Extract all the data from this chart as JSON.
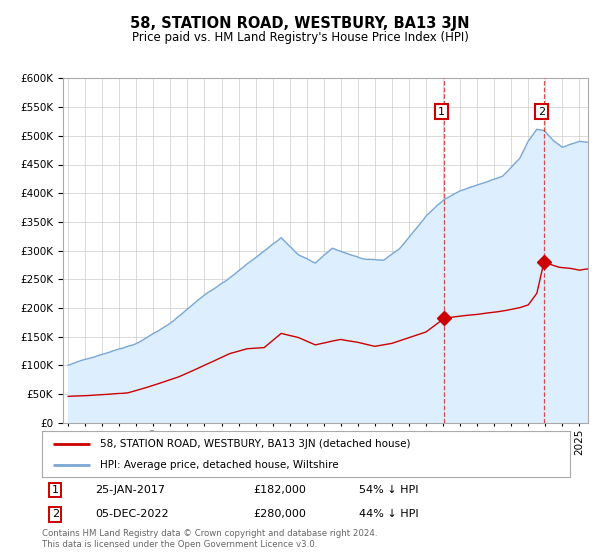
{
  "title": "58, STATION ROAD, WESTBURY, BA13 3JN",
  "subtitle": "Price paid vs. HM Land Registry's House Price Index (HPI)",
  "ylim": [
    0,
    600000
  ],
  "yticks": [
    0,
    50000,
    100000,
    150000,
    200000,
    250000,
    300000,
    350000,
    400000,
    450000,
    500000,
    550000,
    600000
  ],
  "xlim_start": 1994.7,
  "xlim_end": 2025.5,
  "hpi_color": "#7ba7d4",
  "hpi_fill_color": "#ddeeff",
  "price_color": "#cc0000",
  "vline_color": "#cc3333",
  "purchase1_x": 2017.07,
  "purchase1_y": 182000,
  "purchase2_x": 2022.92,
  "purchase2_y": 280000,
  "legend_property_label": "58, STATION ROAD, WESTBURY, BA13 3JN (detached house)",
  "legend_hpi_label": "HPI: Average price, detached house, Wiltshire",
  "note1_label": "1",
  "note1_date": "25-JAN-2017",
  "note1_price": "£182,000",
  "note1_hpi": "54% ↓ HPI",
  "note2_label": "2",
  "note2_date": "05-DEC-2022",
  "note2_price": "£280,000",
  "note2_hpi": "44% ↓ HPI",
  "footer": "Contains HM Land Registry data © Crown copyright and database right 2024.\nThis data is licensed under the Open Government Licence v3.0.",
  "background_color": "#ffffff",
  "grid_color": "#cccccc"
}
